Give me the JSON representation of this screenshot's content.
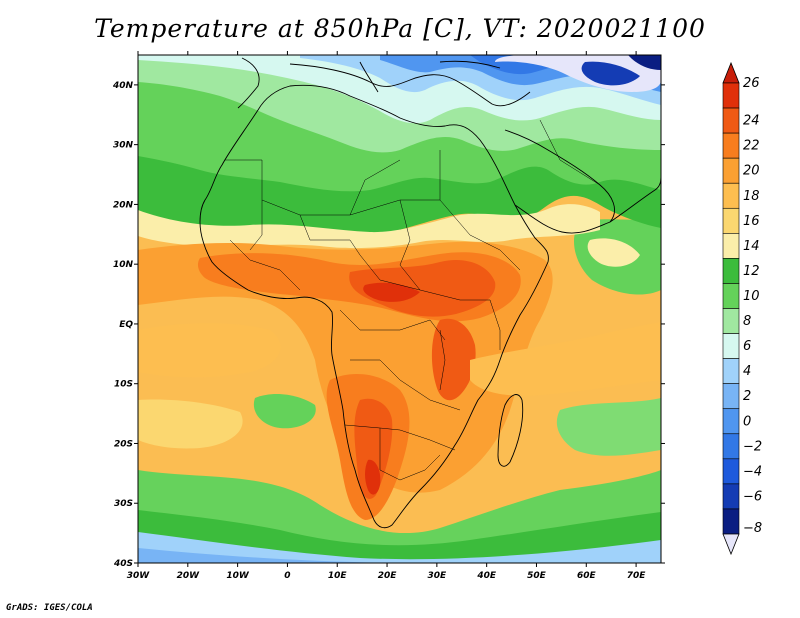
{
  "title": "Temperature at 850hPa [C], VT: 2020021100",
  "credit": "GrADS: IGES/COLA",
  "map": {
    "region": "Africa",
    "variable": "Temperature at 850hPa",
    "units": "C",
    "valid_time": "2020021100",
    "lon_range": [
      -30,
      75
    ],
    "lat_range": [
      -40,
      45
    ],
    "x_ticks": [
      {
        "label": "30W",
        "lon": -30
      },
      {
        "label": "20W",
        "lon": -20
      },
      {
        "label": "10W",
        "lon": -10
      },
      {
        "label": "0",
        "lon": 0
      },
      {
        "label": "10E",
        "lon": 10
      },
      {
        "label": "20E",
        "lon": 20
      },
      {
        "label": "30E",
        "lon": 30
      },
      {
        "label": "40E",
        "lon": 40
      },
      {
        "label": "50E",
        "lon": 50
      },
      {
        "label": "60E",
        "lon": 60
      },
      {
        "label": "70E",
        "lon": 70
      }
    ],
    "y_ticks": [
      {
        "label": "40N",
        "lat": 40
      },
      {
        "label": "30N",
        "lat": 30
      },
      {
        "label": "20N",
        "lat": 20
      },
      {
        "label": "10N",
        "lat": 10
      },
      {
        "label": "EQ",
        "lat": 0
      },
      {
        "label": "10S",
        "lat": -10
      },
      {
        "label": "20S",
        "lat": -20
      },
      {
        "label": "30S",
        "lat": -30
      },
      {
        "label": "40S",
        "lat": -40
      }
    ]
  },
  "colorbar": {
    "levels": [
      "26",
      "24",
      "22",
      "20",
      "18",
      "16",
      "14",
      "12",
      "10",
      "8",
      "6",
      "4",
      "2",
      "0",
      "−2",
      "−4",
      "−6",
      "−8"
    ],
    "colors": [
      "#e0300a",
      "#f05a14",
      "#f87d1e",
      "#fba032",
      "#fdbe50",
      "#fbd770",
      "#fbeeaa",
      "#3cbc3c",
      "#64d25a",
      "#a0e8a0",
      "#d6f8f0",
      "#a0d2fa",
      "#78b4f5",
      "#5096f0",
      "#3278e6",
      "#1e5adc",
      "#143cb4",
      "#0a1e82"
    ],
    "top_arrow_color": "#c81e0a",
    "bottom_arrow_color": "#e6e6fa"
  }
}
